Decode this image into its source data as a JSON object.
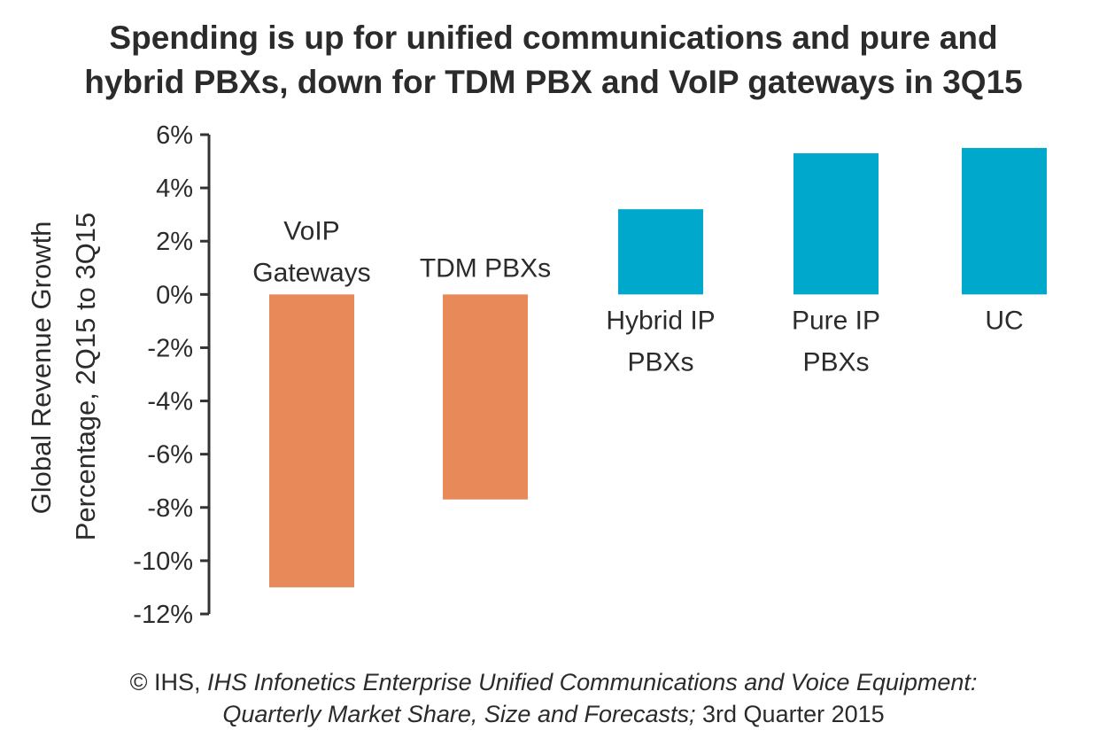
{
  "title": {
    "line1": "Spending is up for unified communications and pure and",
    "line2": "hybrid PBXs, down for TDM PBX and VoIP gateways in 3Q15"
  },
  "footer": {
    "copyright": "© IHS, ",
    "publication": "IHS Infonetics Enterprise Unified Communications and Voice Equipment:",
    "publication_line2": "Quarterly Market Share, Size and Forecasts;",
    "edition": " 3rd Quarter 2015"
  },
  "colors": {
    "negative": "#e8895a",
    "positive": "#00a9cb",
    "axis": "#333333",
    "text": "#2b2b2b"
  },
  "chart_data": {
    "type": "bar",
    "ylabel_line1": "Global Revenue Growth",
    "ylabel_line2": "Percentage, 2Q15 to 3Q15",
    "ylim": [
      -12,
      6
    ],
    "yticks": [
      6,
      4,
      2,
      0,
      -2,
      -4,
      -6,
      -8,
      -10,
      -12
    ],
    "ytick_labels": [
      "6%",
      "4%",
      "2%",
      "0%",
      "-2%",
      "-4%",
      "-6%",
      "-8%",
      "-10%",
      "-12%"
    ],
    "categories": [
      [
        "VoIP",
        "Gateways"
      ],
      [
        "TDM PBXs"
      ],
      [
        "Hybrid IP",
        "PBXs"
      ],
      [
        "Pure IP",
        "PBXs"
      ],
      [
        "UC"
      ]
    ],
    "values": [
      -11.0,
      -7.7,
      3.2,
      5.3,
      5.5
    ]
  }
}
